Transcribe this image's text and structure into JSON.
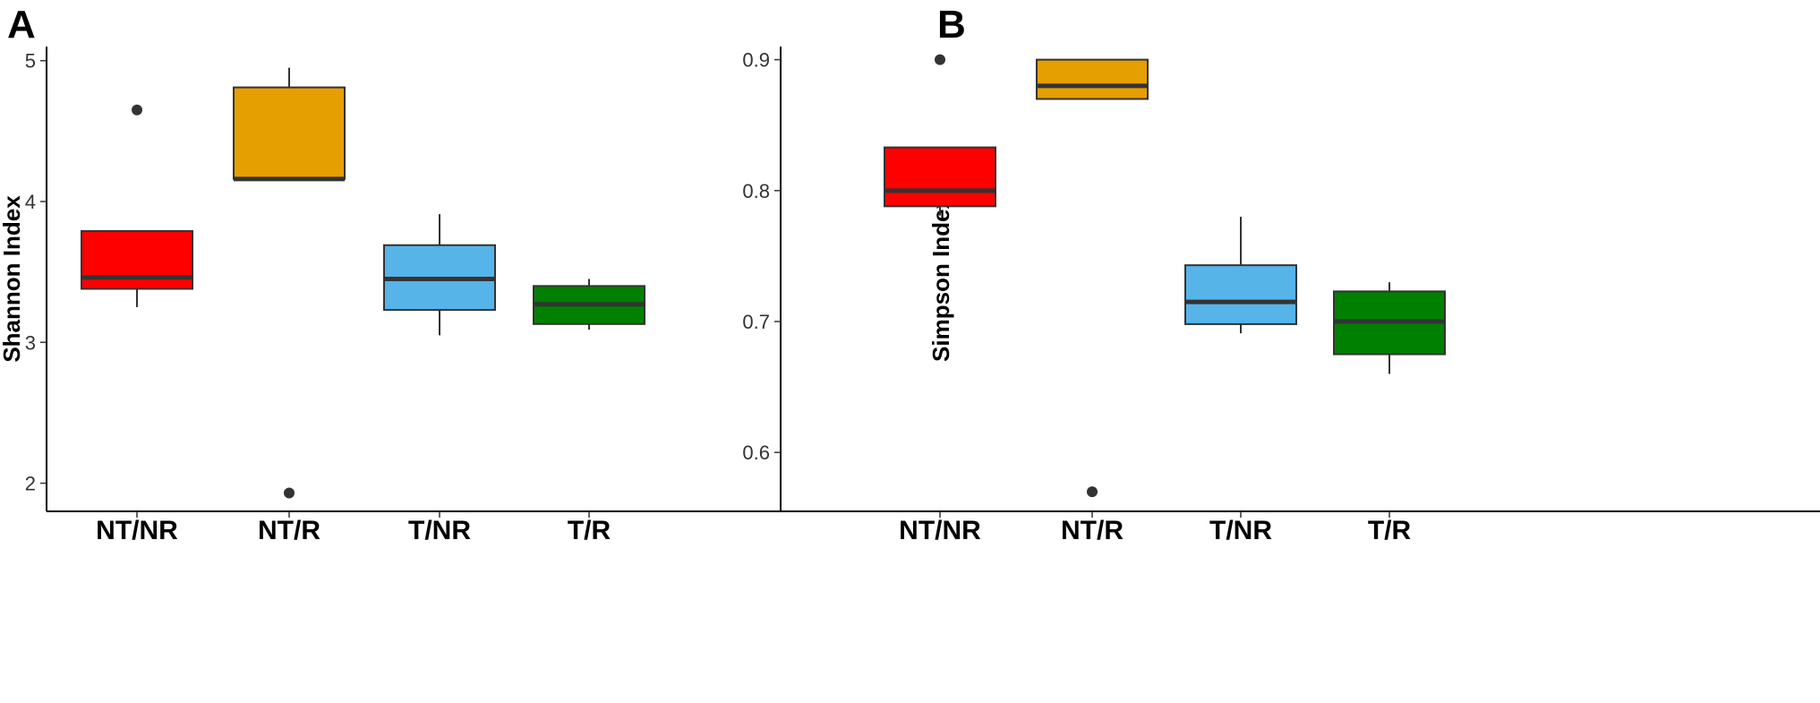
{
  "chart_data": [
    {
      "type": "box",
      "panel": "A",
      "ylabel": "Shannon Index",
      "ylim": [
        1.8,
        5.1
      ],
      "yticks": [
        2,
        3,
        4,
        5
      ],
      "categories": [
        "NT/NR",
        "NT/R",
        "T/NR",
        "T/R"
      ],
      "boxes": [
        {
          "group": "NT/NR",
          "color": "#ff0000",
          "whisker_low": 3.25,
          "q1": 3.38,
          "median": 3.46,
          "q3": 3.79,
          "whisker_high": 3.79,
          "outliers": [
            4.65
          ]
        },
        {
          "group": "NT/R",
          "color": "#e69f00",
          "whisker_low": 4.16,
          "q1": 4.16,
          "median": 4.16,
          "q3": 4.81,
          "whisker_high": 4.95,
          "outliers": [
            1.93
          ]
        },
        {
          "group": "T/NR",
          "color": "#56b4e9",
          "whisker_low": 3.05,
          "q1": 3.23,
          "median": 3.45,
          "q3": 3.69,
          "whisker_high": 3.91,
          "outliers": []
        },
        {
          "group": "T/R",
          "color": "#008000",
          "whisker_low": 3.09,
          "q1": 3.13,
          "median": 3.27,
          "q3": 3.4,
          "whisker_high": 3.45,
          "outliers": []
        }
      ]
    },
    {
      "type": "box",
      "panel": "B",
      "ylabel": "Simpson Index",
      "ylim": [
        0.555,
        0.91
      ],
      "yticks": [
        "0.6",
        "0.7",
        "0.8",
        "0.9"
      ],
      "categories": [
        "NT/NR",
        "NT/R",
        "T/NR",
        "T/R"
      ],
      "boxes": [
        {
          "group": "NT/NR",
          "color": "#ff0000",
          "whisker_low": 0.781,
          "q1": 0.788,
          "median": 0.8,
          "q3": 0.833,
          "whisker_high": 0.833,
          "outliers": [
            0.9
          ]
        },
        {
          "group": "NT/R",
          "color": "#e69f00",
          "whisker_low": 0.87,
          "q1": 0.87,
          "median": 0.88,
          "q3": 0.9,
          "whisker_high": 0.9,
          "outliers": [
            0.57
          ]
        },
        {
          "group": "T/NR",
          "color": "#56b4e9",
          "whisker_low": 0.691,
          "q1": 0.698,
          "median": 0.715,
          "q3": 0.743,
          "whisker_high": 0.78,
          "outliers": []
        },
        {
          "group": "T/R",
          "color": "#008000",
          "whisker_low": 0.66,
          "q1": 0.675,
          "median": 0.7,
          "q3": 0.723,
          "whisker_high": 0.73,
          "outliers": []
        }
      ]
    }
  ]
}
